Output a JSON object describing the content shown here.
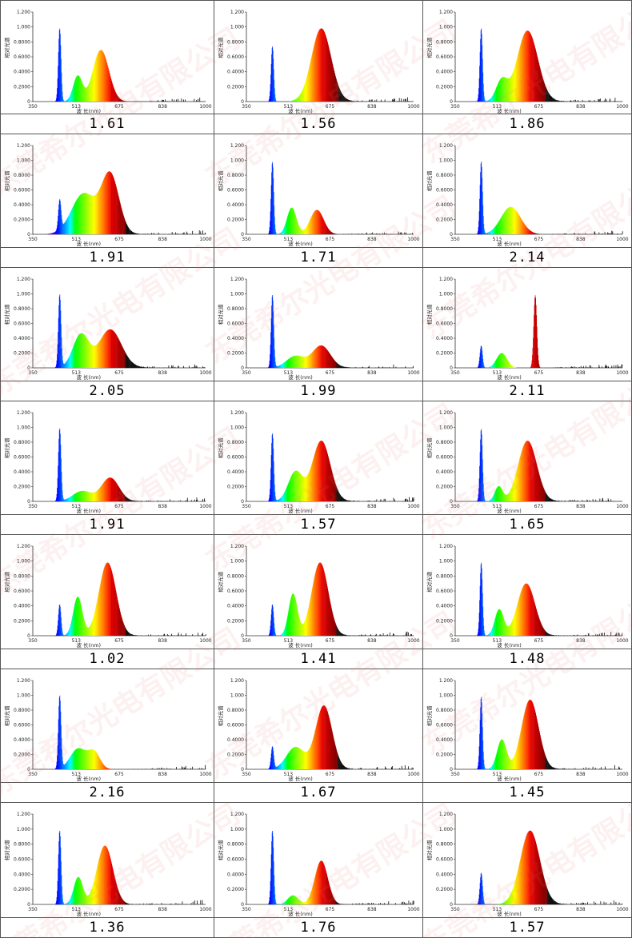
{
  "axis": {
    "ylabel": "相对光谱",
    "xlabel": "波 长(nm)",
    "yticks": [
      "1.200",
      "1.000",
      "0.8000",
      "0.6000",
      "0.4000",
      "0.2000",
      "0"
    ],
    "xticks": [
      "350",
      "513",
      "675",
      "838",
      "1000"
    ]
  },
  "watermark_text": "东莞希尔光电有限公司",
  "chart_data": [
    {
      "type": "area",
      "xlim": [
        350,
        1000
      ],
      "ylim": [
        0,
        1.2
      ],
      "value_label": "1.61",
      "peaks": [
        {
          "x": 450,
          "h": 0.98,
          "w": 5
        },
        {
          "x": 518,
          "h": 0.34,
          "w": 17
        },
        {
          "x": 605,
          "h": 0.69,
          "w": 30
        }
      ]
    },
    {
      "type": "area",
      "xlim": [
        350,
        1000
      ],
      "ylim": [
        0,
        1.2
      ],
      "value_label": "1.56",
      "peaks": [
        {
          "x": 450,
          "h": 0.74,
          "w": 5
        },
        {
          "x": 640,
          "h": 0.98,
          "w": 38
        }
      ]
    },
    {
      "type": "area",
      "xlim": [
        350,
        1000
      ],
      "ylim": [
        0,
        1.2
      ],
      "value_label": "1.86",
      "peaks": [
        {
          "x": 450,
          "h": 0.98,
          "w": 5
        },
        {
          "x": 530,
          "h": 0.28,
          "w": 22
        },
        {
          "x": 630,
          "h": 0.95,
          "w": 40
        }
      ]
    },
    {
      "type": "area",
      "xlim": [
        350,
        1000
      ],
      "ylim": [
        0,
        1.2
      ],
      "value_label": "1.91",
      "peaks": [
        {
          "x": 450,
          "h": 0.4,
          "w": 5
        },
        {
          "x": 540,
          "h": 0.55,
          "w": 45
        },
        {
          "x": 640,
          "h": 0.8,
          "w": 33
        }
      ]
    },
    {
      "type": "area",
      "xlim": [
        350,
        1000
      ],
      "ylim": [
        0,
        1.2
      ],
      "value_label": "1.71",
      "peaks": [
        {
          "x": 450,
          "h": 0.98,
          "w": 5
        },
        {
          "x": 525,
          "h": 0.36,
          "w": 18
        },
        {
          "x": 623,
          "h": 0.33,
          "w": 26
        }
      ]
    },
    {
      "type": "area",
      "xlim": [
        350,
        1000
      ],
      "ylim": [
        0,
        1.2
      ],
      "value_label": "2.14",
      "peaks": [
        {
          "x": 450,
          "h": 0.98,
          "w": 5
        },
        {
          "x": 565,
          "h": 0.37,
          "w": 38
        }
      ]
    },
    {
      "type": "area",
      "xlim": [
        350,
        1000
      ],
      "ylim": [
        0,
        1.2
      ],
      "value_label": "2.05",
      "peaks": [
        {
          "x": 450,
          "h": 0.98,
          "w": 5
        },
        {
          "x": 530,
          "h": 0.45,
          "w": 30
        },
        {
          "x": 640,
          "h": 0.52,
          "w": 42
        }
      ]
    },
    {
      "type": "area",
      "xlim": [
        350,
        1000
      ],
      "ylim": [
        0,
        1.2
      ],
      "value_label": "1.99",
      "peaks": [
        {
          "x": 450,
          "h": 0.98,
          "w": 5
        },
        {
          "x": 540,
          "h": 0.16,
          "w": 35
        },
        {
          "x": 640,
          "h": 0.3,
          "w": 35
        }
      ]
    },
    {
      "type": "area",
      "xlim": [
        350,
        1000
      ],
      "ylim": [
        0,
        1.2
      ],
      "value_label": "2.11",
      "peaks": [
        {
          "x": 450,
          "h": 0.3,
          "w": 5
        },
        {
          "x": 530,
          "h": 0.2,
          "w": 20
        },
        {
          "x": 660,
          "h": 0.98,
          "w": 6
        }
      ]
    },
    {
      "type": "area",
      "xlim": [
        350,
        1000
      ],
      "ylim": [
        0,
        1.2
      ],
      "value_label": "1.91",
      "peaks": [
        {
          "x": 450,
          "h": 0.98,
          "w": 5
        },
        {
          "x": 535,
          "h": 0.14,
          "w": 35
        },
        {
          "x": 640,
          "h": 0.32,
          "w": 33
        }
      ]
    },
    {
      "type": "area",
      "xlim": [
        350,
        1000
      ],
      "ylim": [
        0,
        1.2
      ],
      "value_label": "1.57",
      "peaks": [
        {
          "x": 450,
          "h": 0.92,
          "w": 5
        },
        {
          "x": 540,
          "h": 0.4,
          "w": 28
        },
        {
          "x": 640,
          "h": 0.82,
          "w": 35
        }
      ]
    },
    {
      "type": "area",
      "xlim": [
        350,
        1000
      ],
      "ylim": [
        0,
        1.2
      ],
      "value_label": "1.65",
      "peaks": [
        {
          "x": 450,
          "h": 0.98,
          "w": 5
        },
        {
          "x": 518,
          "h": 0.2,
          "w": 15
        },
        {
          "x": 630,
          "h": 0.82,
          "w": 36
        }
      ]
    },
    {
      "type": "area",
      "xlim": [
        350,
        1000
      ],
      "ylim": [
        0,
        1.2
      ],
      "value_label": "1.02",
      "peaks": [
        {
          "x": 450,
          "h": 0.42,
          "w": 5
        },
        {
          "x": 518,
          "h": 0.52,
          "w": 17
        },
        {
          "x": 630,
          "h": 0.98,
          "w": 32
        }
      ]
    },
    {
      "type": "area",
      "xlim": [
        350,
        1000
      ],
      "ylim": [
        0,
        1.2
      ],
      "value_label": "1.41",
      "peaks": [
        {
          "x": 450,
          "h": 0.42,
          "w": 5
        },
        {
          "x": 530,
          "h": 0.56,
          "w": 17
        },
        {
          "x": 635,
          "h": 0.98,
          "w": 32
        }
      ]
    },
    {
      "type": "area",
      "xlim": [
        350,
        1000
      ],
      "ylim": [
        0,
        1.2
      ],
      "value_label": "1.48",
      "peaks": [
        {
          "x": 450,
          "h": 0.98,
          "w": 5
        },
        {
          "x": 520,
          "h": 0.35,
          "w": 17
        },
        {
          "x": 625,
          "h": 0.7,
          "w": 34
        }
      ]
    },
    {
      "type": "area",
      "xlim": [
        350,
        1000
      ],
      "ylim": [
        0,
        1.2
      ],
      "value_label": "2.16",
      "peaks": [
        {
          "x": 450,
          "h": 0.98,
          "w": 5
        },
        {
          "x": 520,
          "h": 0.28,
          "w": 30
        },
        {
          "x": 580,
          "h": 0.22,
          "w": 22
        }
      ]
    },
    {
      "type": "area",
      "xlim": [
        350,
        1000
      ],
      "ylim": [
        0,
        1.2
      ],
      "value_label": "1.67",
      "peaks": [
        {
          "x": 450,
          "h": 0.3,
          "w": 5
        },
        {
          "x": 540,
          "h": 0.3,
          "w": 35
        },
        {
          "x": 650,
          "h": 0.86,
          "w": 32
        }
      ]
    },
    {
      "type": "area",
      "xlim": [
        350,
        1000
      ],
      "ylim": [
        0,
        1.2
      ],
      "value_label": "1.45",
      "peaks": [
        {
          "x": 450,
          "h": 0.98,
          "w": 5
        },
        {
          "x": 530,
          "h": 0.4,
          "w": 18
        },
        {
          "x": 640,
          "h": 0.94,
          "w": 33
        }
      ]
    },
    {
      "type": "area",
      "xlim": [
        350,
        1000
      ],
      "ylim": [
        0,
        1.2
      ],
      "value_label": "1.36",
      "peaks": [
        {
          "x": 450,
          "h": 0.98,
          "w": 5
        },
        {
          "x": 520,
          "h": 0.36,
          "w": 17
        },
        {
          "x": 620,
          "h": 0.78,
          "w": 30
        }
      ]
    },
    {
      "type": "area",
      "xlim": [
        350,
        1000
      ],
      "ylim": [
        0,
        1.2
      ],
      "value_label": "1.76",
      "peaks": [
        {
          "x": 450,
          "h": 0.98,
          "w": 5
        },
        {
          "x": 530,
          "h": 0.12,
          "w": 20
        },
        {
          "x": 640,
          "h": 0.58,
          "w": 25
        }
      ]
    },
    {
      "type": "area",
      "xlim": [
        350,
        1000
      ],
      "ylim": [
        0,
        1.2
      ],
      "value_label": "1.57",
      "peaks": [
        {
          "x": 450,
          "h": 0.42,
          "w": 5
        },
        {
          "x": 640,
          "h": 0.98,
          "w": 38
        }
      ]
    }
  ]
}
